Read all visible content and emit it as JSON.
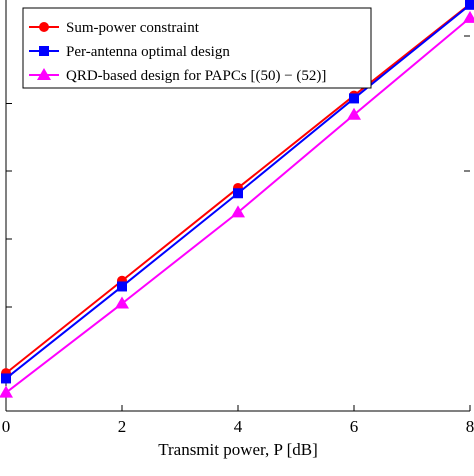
{
  "chart_data": {
    "type": "line",
    "xlabel": "Transmit power, P [dB]",
    "x": [
      0,
      2,
      4,
      6,
      8
    ],
    "xlim": [
      0,
      8
    ],
    "ylim": [
      0,
      1
    ],
    "y_tick_labels_visible": false,
    "grid": false,
    "legend_position": "top-left",
    "series": [
      {
        "name": "Sum-power constraint",
        "values": [
          0.093,
          0.32,
          0.548,
          0.775,
          1.0
        ],
        "color": "#ff0000",
        "marker": "circle"
      },
      {
        "name": "Per-antenna optimal design",
        "values": [
          0.08,
          0.306,
          0.535,
          0.768,
          0.998
        ],
        "color": "#0000ff",
        "marker": "square"
      },
      {
        "name": "QRD-based design for PAPCs [(50) − (52)]",
        "values": [
          0.045,
          0.264,
          0.488,
          0.728,
          0.966
        ],
        "color": "#ff00ff",
        "marker": "triangle"
      }
    ]
  }
}
